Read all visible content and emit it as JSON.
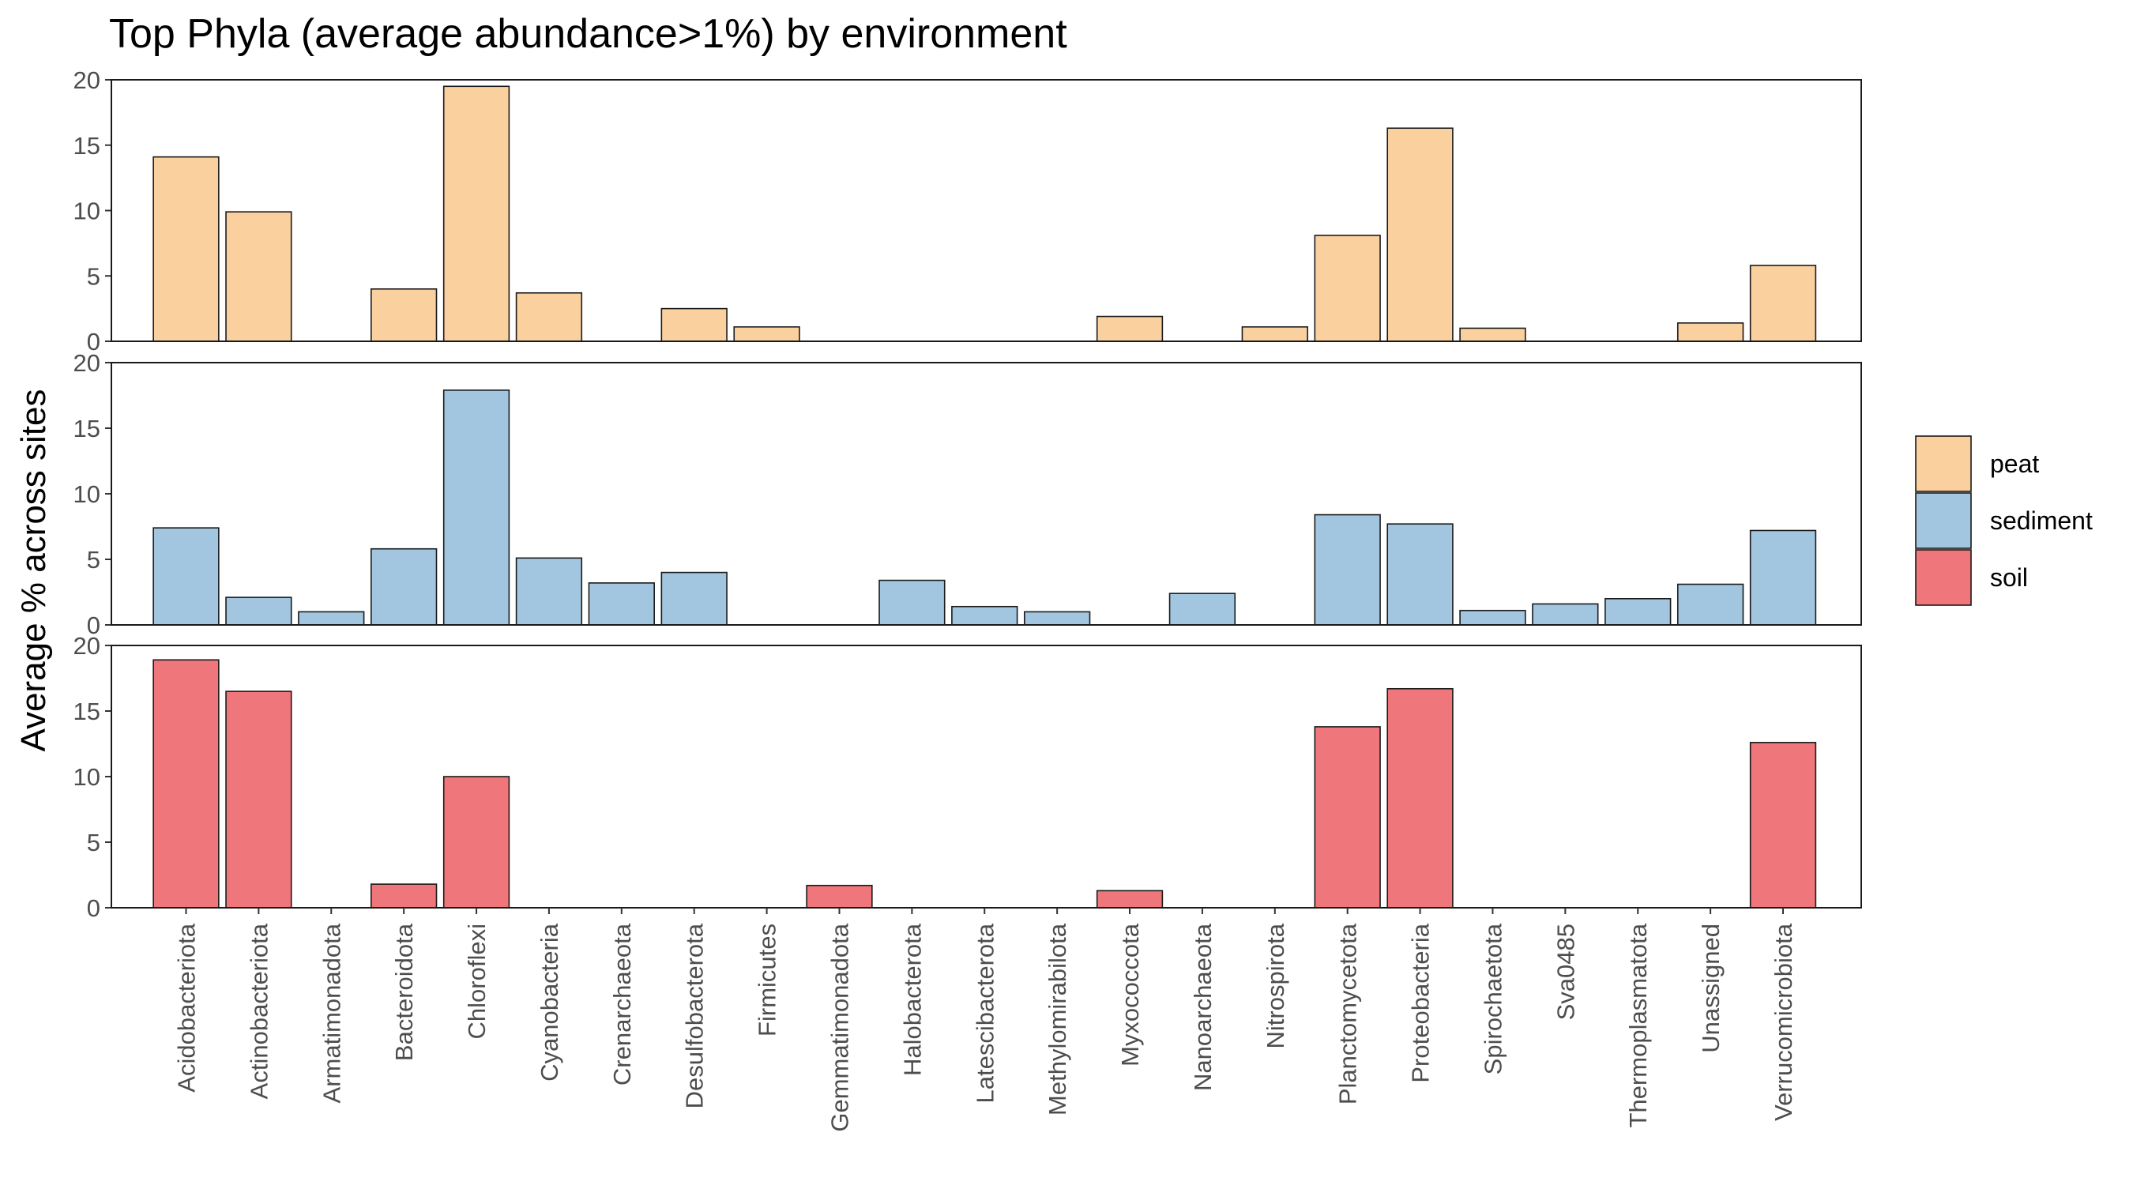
{
  "chart_data": {
    "type": "bar",
    "title": "Top Phyla (average abundance>1%) by environment",
    "xlabel": "",
    "ylabel": "Average % across sites",
    "ylim": [
      0,
      20
    ],
    "yticks": [
      0,
      5,
      10,
      15,
      20
    ],
    "grid": false,
    "legend_position": "right",
    "categories": [
      "Acidobacteriota",
      "Actinobacteriota",
      "Armatimonadota",
      "Bacteroidota",
      "Chloroflexi",
      "Cyanobacteria",
      "Crenarchaeota",
      "Desulfobacterota",
      "Firmicutes",
      "Gemmatimonadota",
      "Halobacterota",
      "Latescibacterota",
      "Methylomirabilota",
      "Myxococcota",
      "Nanoarchaeota",
      "Nitrospirota",
      "Planctomycetota",
      "Proteobacteria",
      "Spirochaetota",
      "Sva0485",
      "Thermoplasmatota",
      "Unassigned",
      "Verrucomicrobiota"
    ],
    "series": [
      {
        "name": "peat",
        "color": "#FBD09F",
        "values": [
          14.1,
          9.9,
          0,
          4.0,
          19.5,
          3.7,
          0,
          2.5,
          1.1,
          0,
          0,
          0,
          0,
          1.9,
          0,
          1.1,
          8.1,
          16.3,
          1.0,
          0,
          0,
          1.4,
          5.8
        ]
      },
      {
        "name": "sediment",
        "color": "#A2C6E0",
        "values": [
          7.4,
          2.1,
          1.0,
          5.8,
          17.9,
          5.1,
          3.2,
          4.0,
          0,
          0,
          3.4,
          1.4,
          1.0,
          0,
          2.4,
          0,
          8.4,
          7.7,
          1.1,
          1.6,
          2.0,
          3.1,
          7.2
        ]
      },
      {
        "name": "soil",
        "color": "#EF767A",
        "values": [
          18.9,
          16.5,
          0,
          1.8,
          10.0,
          0,
          0,
          0,
          0,
          1.7,
          0,
          0,
          0,
          1.3,
          0,
          0,
          13.8,
          16.7,
          0,
          0,
          0,
          0,
          12.6
        ]
      }
    ]
  }
}
